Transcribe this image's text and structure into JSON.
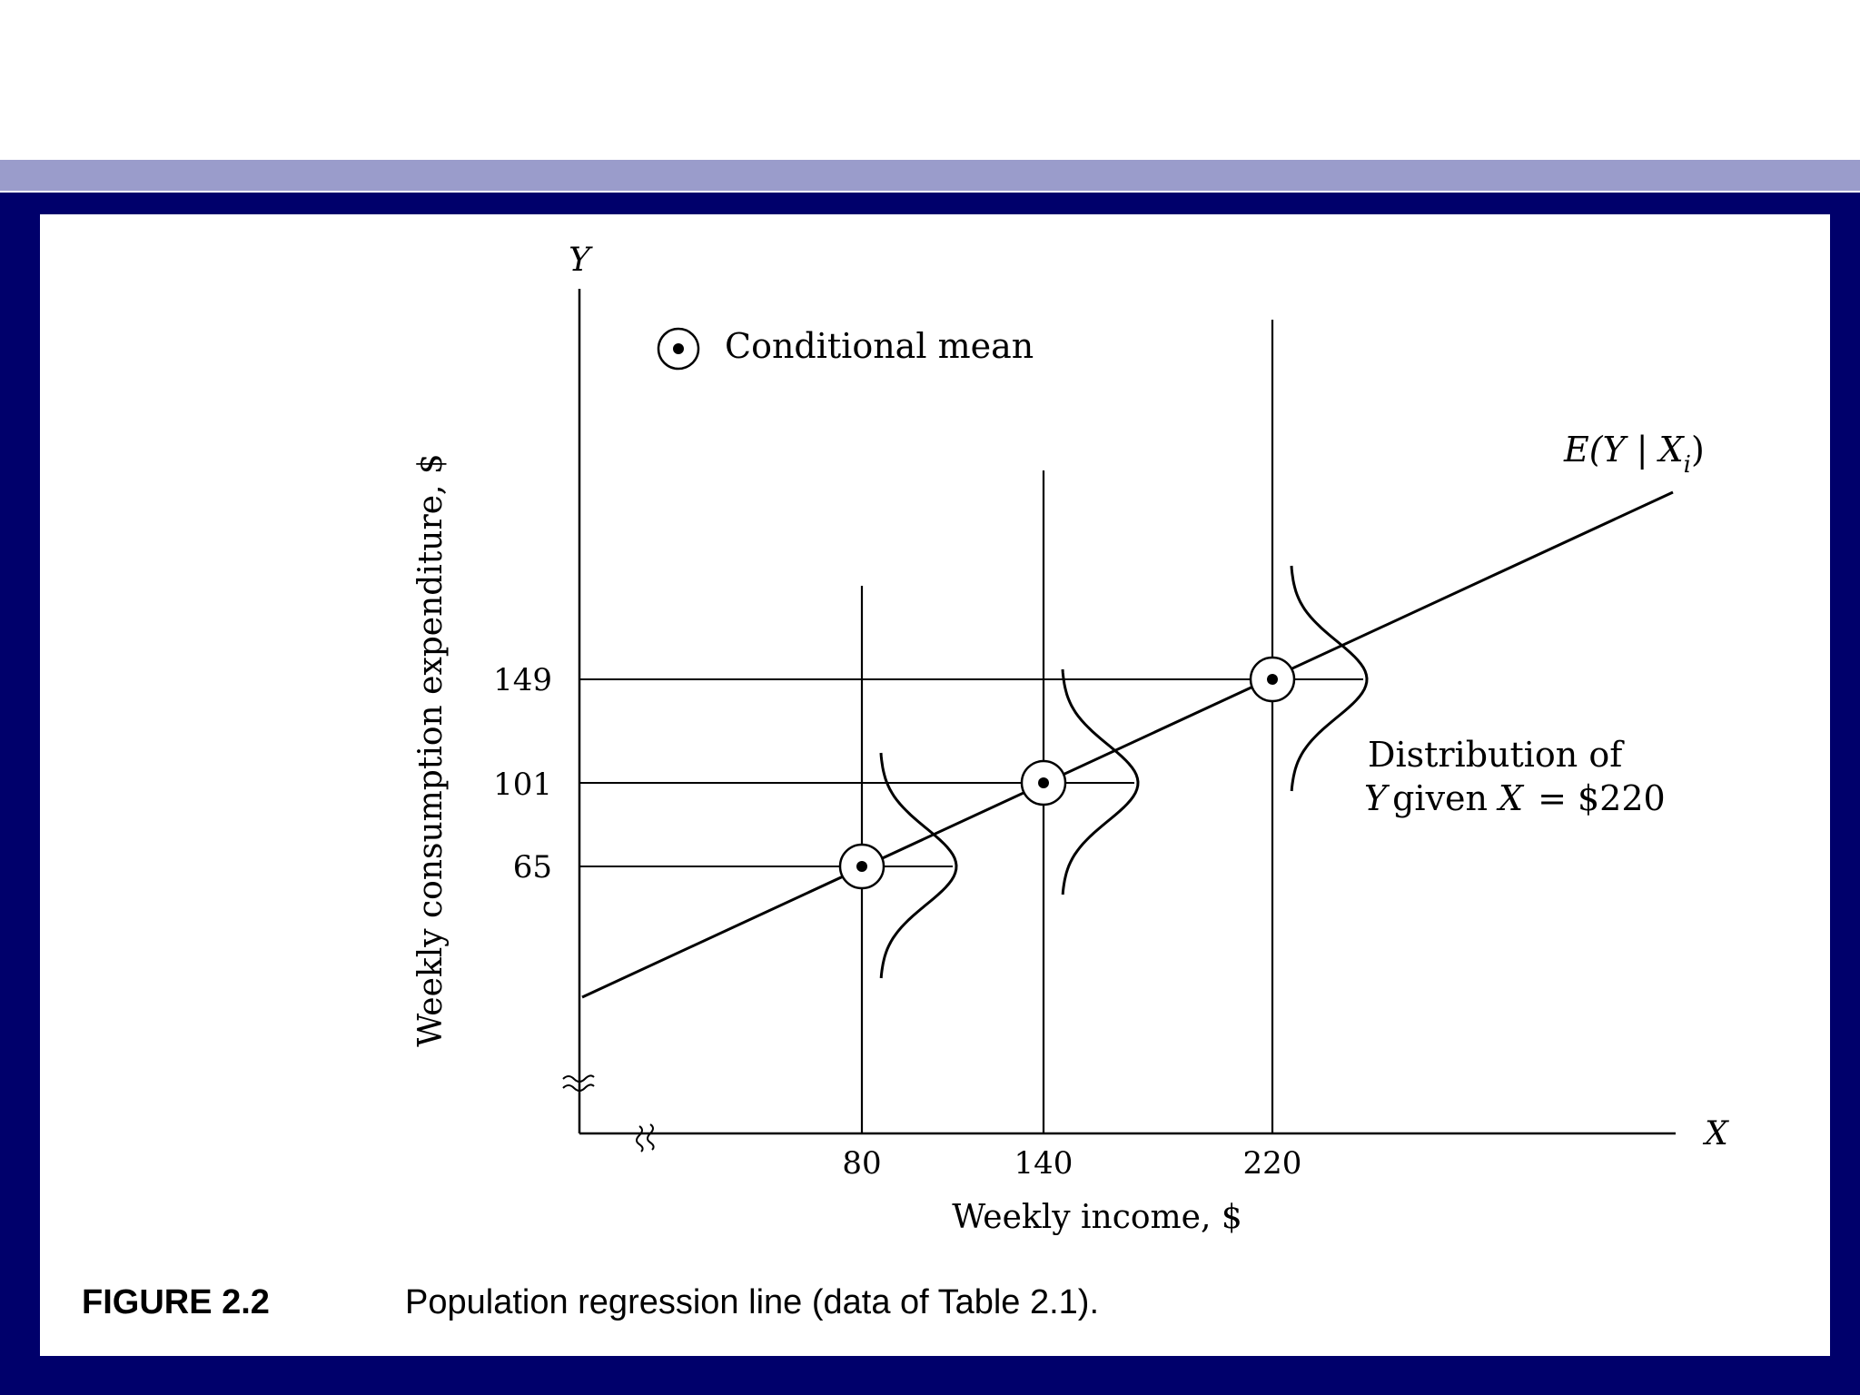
{
  "slide": {
    "accent_color": "#9a9ccb",
    "frame_color": "#00006b"
  },
  "figure": {
    "number": "FIGURE 2.2",
    "caption": "Population regression line (data of Table 2.1)."
  },
  "chart_data": {
    "type": "line",
    "title": "",
    "xlabel": "Weekly income, $",
    "ylabel": "Weekly consumption expenditure, $",
    "x_axis_symbol": "X",
    "y_axis_symbol": "Y",
    "x_ticks": [
      "80",
      "140",
      "220"
    ],
    "y_ticks": [
      "65",
      "101",
      "149"
    ],
    "x_axis_break": true,
    "y_axis_break": true,
    "grid": false,
    "series": [
      {
        "name": "E(Y | Xi)",
        "label_main": "E(Y | X",
        "label_sub": "i",
        "label_close": ")",
        "x": [
          80,
          140,
          220
        ],
        "y": [
          65,
          101,
          149
        ]
      }
    ],
    "distributions_at_x": [
      80,
      140,
      220
    ],
    "legend": {
      "marker": "circled-dot",
      "label": "Conditional mean",
      "position": "top-left"
    },
    "annotation": {
      "line1": "Distribution of",
      "line2_var_y": "Y",
      "line2_given": "given",
      "line2_var_x": "X",
      "line2_value": "= $220"
    }
  }
}
